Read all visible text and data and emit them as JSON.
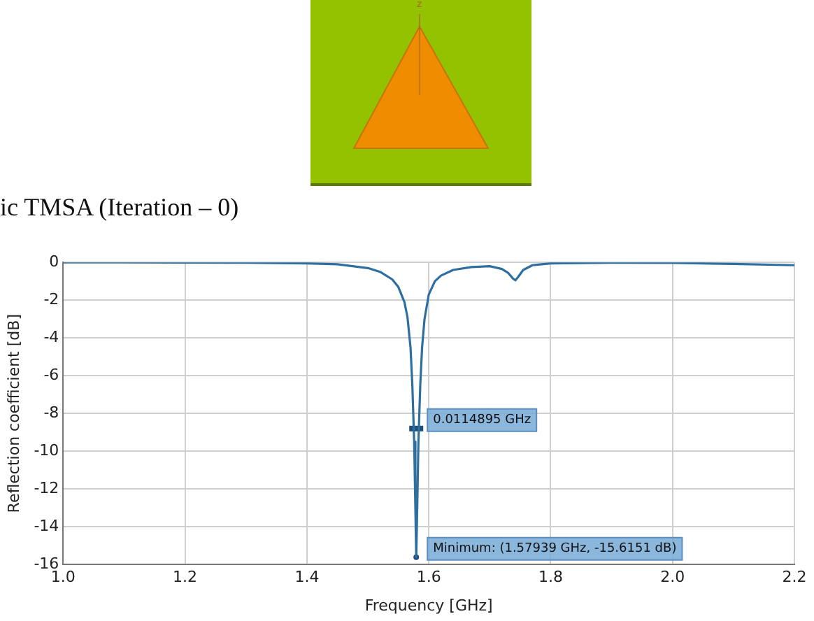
{
  "chart_data": {
    "type": "line",
    "xlabel": "Frequency [GHz]",
    "ylabel": "Reflection coefficient [dB]",
    "annotations": [
      "ic TMSA (Iteration – 0)",
      "z",
      {
        "text": "0.0114895 GHz",
        "x": 1.57939,
        "y": -8.8
      },
      {
        "text": "Minimum: (1.57939 GHz, -15.6151 dB)",
        "x": 1.57939,
        "y": -15.6151
      }
    ],
    "series": [
      {
        "color": "#2f6f9f",
        "x": [
          1.0,
          1.1,
          1.2,
          1.3,
          1.4,
          1.45,
          1.5,
          1.52,
          1.54,
          1.55,
          1.56,
          1.565,
          1.57,
          1.573,
          1.576,
          1.578,
          1.57939,
          1.581,
          1.583,
          1.586,
          1.589,
          1.593,
          1.6,
          1.61,
          1.62,
          1.64,
          1.67,
          1.7,
          1.72,
          1.73,
          1.738,
          1.742,
          1.746,
          1.755,
          1.77,
          1.8,
          1.9,
          2.0,
          2.1,
          2.2
        ],
        "values": [
          0,
          0,
          -0.01,
          -0.02,
          -0.05,
          -0.1,
          -0.3,
          -0.5,
          -0.9,
          -1.3,
          -2.1,
          -2.9,
          -4.5,
          -6.5,
          -9.5,
          -13,
          -15.6151,
          -13,
          -9.5,
          -6.5,
          -4.5,
          -3,
          -1.7,
          -1,
          -0.7,
          -0.4,
          -0.25,
          -0.2,
          -0.35,
          -0.55,
          -0.85,
          -0.95,
          -0.8,
          -0.4,
          -0.15,
          -0.05,
          -0.02,
          -0.03,
          -0.08,
          -0.15
        ]
      }
    ],
    "xlim": [
      1.0,
      2.2
    ],
    "xticks": [
      {
        "value": 1.0,
        "label": "1.0"
      },
      {
        "value": 1.2,
        "label": "1.2"
      },
      {
        "value": 1.4,
        "label": "1.4"
      },
      {
        "value": 1.6,
        "label": "1.6"
      },
      {
        "value": 1.8,
        "label": "1.8"
      },
      {
        "value": 2.0,
        "label": "2.0"
      },
      {
        "value": 2.2,
        "label": "2.2"
      }
    ],
    "ylim": [
      -16,
      0
    ],
    "yticks": [
      -16,
      -14,
      -12,
      -10,
      -8,
      -6,
      -4,
      -2,
      0
    ],
    "grid": true,
    "marker": "none",
    "line_style": "solid"
  }
}
